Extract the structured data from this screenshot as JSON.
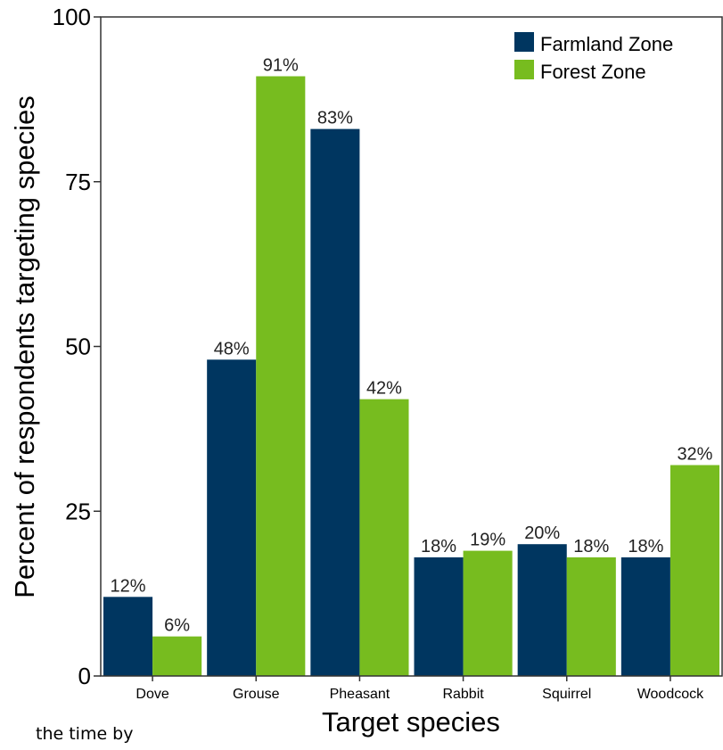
{
  "chart_data": {
    "type": "bar",
    "xlabel": "Target species",
    "ylabel": "Percent of respondents targeting species",
    "ylim": [
      0,
      100
    ],
    "yticks": [
      0,
      25,
      50,
      75,
      100
    ],
    "categories": [
      "Dove",
      "Grouse",
      "Pheasant",
      "Rabbit",
      "Squirrel",
      "Woodcock"
    ],
    "series": [
      {
        "name": "Farmland Zone",
        "color": "#003660",
        "values": [
          12,
          48,
          83,
          18,
          20,
          18
        ],
        "labels": [
          "12%",
          "48%",
          "83%",
          "18%",
          "20%",
          "18%"
        ]
      },
      {
        "name": "Forest Zone",
        "color": "#77bc1f",
        "values": [
          6,
          91,
          42,
          19,
          18,
          32
        ],
        "labels": [
          "6%",
          "91%",
          "42%",
          "19%",
          "18%",
          "32%"
        ]
      }
    ],
    "legend_position": "top-right",
    "grid": false
  },
  "caption": "the time by"
}
